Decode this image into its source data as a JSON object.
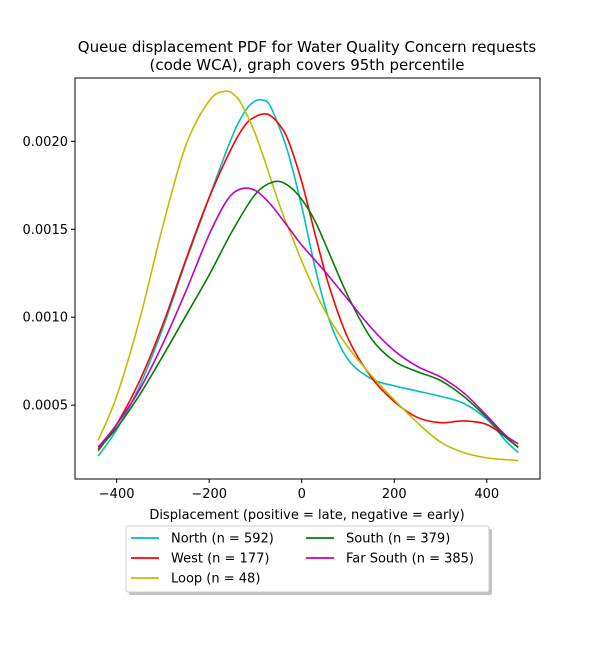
{
  "chart_data": {
    "type": "line",
    "title_lines": [
      "Queue displacement PDF for Water Quality Concern  requests",
      "(code WCA), graph covers 95th percentile"
    ],
    "xlabel": "Displacement (positive = late, negative = early)",
    "ylabel": "",
    "xlim": [
      -490,
      515
    ],
    "ylim": [
      8e-05,
      0.00236
    ],
    "xticks": [
      -400,
      -200,
      0,
      200,
      400
    ],
    "xtick_labels": [
      "−400",
      "−200",
      "0",
      "200",
      "400"
    ],
    "yticks": [
      0.0005,
      0.001,
      0.0015,
      0.002
    ],
    "ytick_labels": [
      "0.0005",
      "0.0010",
      "0.0015",
      "0.0020"
    ],
    "grid": false,
    "legend_position": "below",
    "series": [
      {
        "name": "North (n = 592)",
        "color": "#00bfbf",
        "x": [
          -440,
          -400,
          -350,
          -300,
          -250,
          -200,
          -150,
          -120,
          -100,
          -85,
          -70,
          -50,
          -30,
          0,
          30,
          60,
          100,
          150,
          200,
          250,
          300,
          350,
          400,
          440,
          468
        ],
        "y": [
          0.00021,
          0.00036,
          0.00061,
          0.00094,
          0.00132,
          0.00168,
          0.00203,
          0.00218,
          0.00223,
          0.002235,
          0.00221,
          0.00209,
          0.00194,
          0.00163,
          0.00127,
          0.00098,
          0.00076,
          0.00065,
          0.00061,
          0.00058,
          0.00055,
          0.00051,
          0.00042,
          0.0003,
          0.00023
        ]
      },
      {
        "name": "West (n = 177)",
        "color": "#ff0000",
        "x": [
          -440,
          -400,
          -350,
          -300,
          -250,
          -200,
          -150,
          -120,
          -100,
          -85,
          -70,
          -50,
          -30,
          0,
          30,
          60,
          100,
          150,
          200,
          250,
          300,
          350,
          400,
          440,
          468
        ],
        "y": [
          0.00024,
          0.00039,
          0.00064,
          0.00096,
          0.00133,
          0.00168,
          0.00197,
          0.0021,
          0.00214,
          0.002155,
          0.00215,
          0.0021,
          0.00201,
          0.00177,
          0.00146,
          0.00117,
          0.00088,
          0.00066,
          0.00052,
          0.00043,
          0.0004,
          0.00041,
          0.00039,
          0.00032,
          0.00026
        ]
      },
      {
        "name": "Loop (n = 48)",
        "color": "#bfbf00",
        "x": [
          -440,
          -400,
          -350,
          -300,
          -250,
          -200,
          -165,
          -140,
          -120,
          -100,
          -80,
          -60,
          -40,
          -20,
          0,
          30,
          60,
          100,
          150,
          200,
          250,
          300,
          350,
          400,
          440,
          468
        ],
        "y": [
          0.0003,
          0.00055,
          0.00099,
          0.00152,
          0.00198,
          0.00223,
          0.002285,
          0.00225,
          0.00216,
          0.00204,
          0.00189,
          0.00173,
          0.00158,
          0.00145,
          0.00132,
          0.00114,
          0.00099,
          0.00083,
          0.00067,
          0.00053,
          0.0004,
          0.00029,
          0.00023,
          0.0002,
          0.00019,
          0.000185
        ]
      },
      {
        "name": "South (n = 379)",
        "color": "#008000",
        "x": [
          -440,
          -400,
          -350,
          -300,
          -250,
          -200,
          -150,
          -100,
          -60,
          -30,
          0,
          30,
          60,
          100,
          150,
          200,
          250,
          300,
          350,
          400,
          440,
          468
        ],
        "y": [
          0.00025,
          0.00037,
          0.00056,
          0.00078,
          0.00101,
          0.00124,
          0.00149,
          0.0017,
          0.00177,
          0.00175,
          0.00167,
          0.00154,
          0.00136,
          0.00112,
          0.00088,
          0.00075,
          0.00069,
          0.00064,
          0.00055,
          0.00043,
          0.00032,
          0.00026
        ]
      },
      {
        "name": "Far South (n = 385)",
        "color": "#bf00bf",
        "x": [
          -440,
          -400,
          -350,
          -300,
          -250,
          -200,
          -160,
          -130,
          -100,
          -70,
          -40,
          -20,
          0,
          50,
          100,
          150,
          200,
          250,
          300,
          350,
          400,
          440,
          468
        ],
        "y": [
          0.00026,
          0.00039,
          0.00059,
          0.00085,
          0.00115,
          0.00147,
          0.00167,
          0.00173,
          0.00172,
          0.00165,
          0.00155,
          0.00148,
          0.00141,
          0.00126,
          0.0011,
          0.00094,
          0.00081,
          0.00072,
          0.00066,
          0.00057,
          0.00044,
          0.00033,
          0.00028
        ]
      }
    ]
  }
}
